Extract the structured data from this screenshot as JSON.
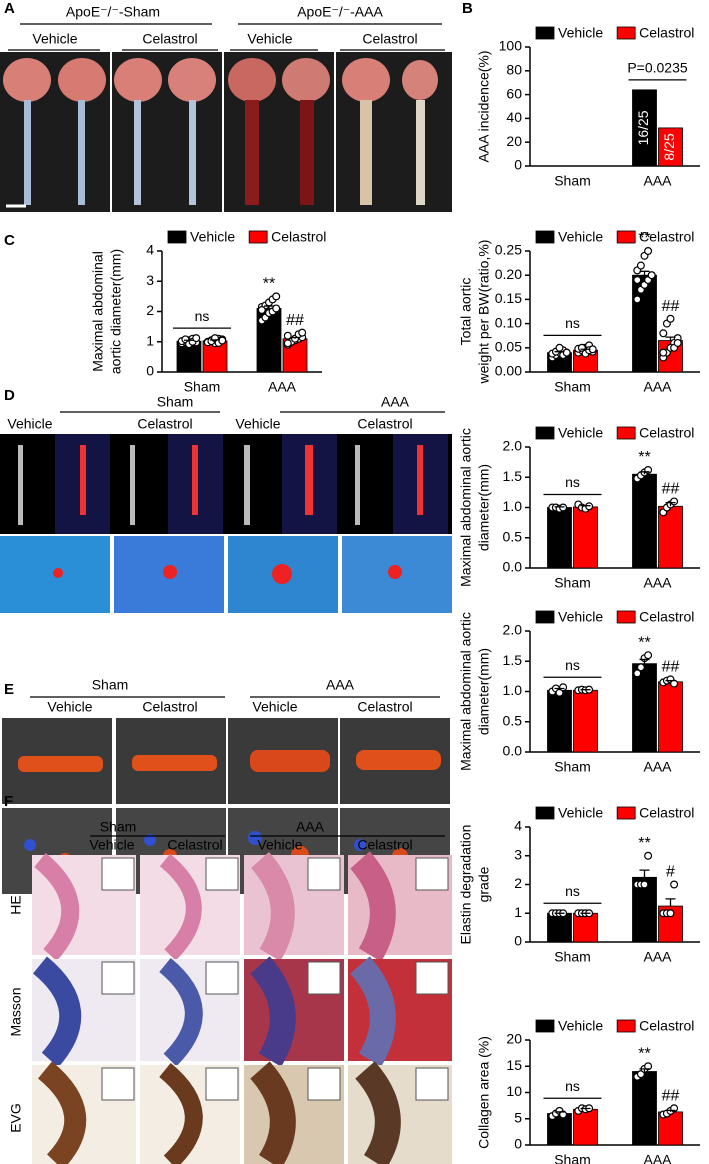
{
  "panels": {
    "A": {
      "letter": "A",
      "groups": [
        "ApoE⁻/⁻-Sham",
        "ApoE⁻/⁻-AAA"
      ],
      "conditions": [
        "Vehicle",
        "Celastrol",
        "Vehicle",
        "Celastrol"
      ]
    },
    "B": {
      "letter": "B"
    },
    "C": {
      "letter": "C"
    },
    "D": {
      "letter": "D",
      "groups": [
        "Sham",
        "AAA"
      ],
      "conditions": [
        "Vehicle",
        "Celastrol",
        "Vehicle",
        "Celastrol"
      ]
    },
    "E": {
      "letter": "E",
      "groups": [
        "Sham",
        "AAA"
      ],
      "conditions": [
        "Vehicle",
        "Celastrol",
        "Vehicle",
        "Celastrol"
      ]
    },
    "F": {
      "letter": "F",
      "groups": [
        "Sham",
        "AAA"
      ],
      "conditions": [
        "Vehicle",
        "Celastrol",
        "Vehicle",
        "Celastrol"
      ],
      "stains": [
        "HE",
        "Masson",
        "EVG"
      ]
    }
  },
  "chart_data": [
    {
      "type": "bar",
      "ylabel": [
        "AAA incidence(%)"
      ],
      "categories": [
        "Sham",
        "AAA"
      ],
      "series": [
        {
          "name": "Vehicle",
          "color": "#000000",
          "values": [
            0,
            64
          ],
          "value_labels": [
            null,
            "16/25"
          ]
        },
        {
          "name": "Celastrol",
          "color": "#ff0000",
          "values": [
            0,
            32
          ],
          "value_labels": [
            null,
            "8/25"
          ]
        }
      ],
      "category_annotations": [
        null,
        "P=0.0235"
      ],
      "ylim": [
        0,
        100
      ],
      "yticks": [
        0,
        20,
        40,
        60,
        80,
        100
      ],
      "legend": "top"
    },
    {
      "type": "bar",
      "ylabel": [
        "Maximal abdominal",
        "aortic diameter(mm)"
      ],
      "categories": [
        "Sham",
        "AAA"
      ],
      "series": [
        {
          "name": "Vehicle",
          "color": "#000000",
          "values": [
            1.02,
            2.1
          ],
          "errors": [
            0.03,
            0.08
          ],
          "points": [
            [
              0.95,
              1.0,
              1.05,
              1.1,
              0.98,
              1.02,
              1.08,
              0.92,
              1.0,
              1.12
            ],
            [
              1.7,
              1.8,
              1.95,
              2.0,
              2.1,
              2.15,
              2.2,
              2.3,
              2.4,
              2.5,
              2.05
            ]
          ],
          "annotations": [
            null,
            "**"
          ]
        },
        {
          "name": "Celastrol",
          "color": "#ff0000",
          "values": [
            1.03,
            1.1
          ],
          "errors": [
            0.03,
            0.04
          ],
          "points": [
            [
              1.0,
              1.05,
              0.95,
              1.1,
              1.08,
              0.98,
              1.02,
              1.12,
              0.96,
              1.04
            ],
            [
              0.9,
              1.0,
              1.05,
              1.1,
              1.15,
              1.2,
              1.0,
              1.1,
              1.25,
              1.3,
              0.95
            ]
          ],
          "annotations": [
            null,
            "##"
          ]
        }
      ],
      "category_annotations": [
        "ns",
        null
      ],
      "ylim": [
        0,
        4
      ],
      "yticks": [
        0,
        1,
        2,
        3,
        4
      ],
      "legend": "top"
    },
    {
      "type": "bar",
      "ylabel": [
        "Total aortic",
        "weight per BW(ratio,%)"
      ],
      "categories": [
        "Sham",
        "AAA"
      ],
      "series": [
        {
          "name": "Vehicle",
          "color": "#000000",
          "values": [
            0.04,
            0.2
          ],
          "errors": [
            0.002,
            0.008
          ],
          "points": [
            [
              0.03,
              0.035,
              0.04,
              0.045,
              0.04,
              0.038,
              0.042,
              0.05,
              0.035,
              0.04
            ],
            [
              0.15,
              0.17,
              0.18,
              0.19,
              0.2,
              0.21,
              0.22,
              0.24,
              0.25,
              0.2,
              0.19
            ]
          ],
          "annotations": [
            null,
            "**"
          ]
        },
        {
          "name": "Celastrol",
          "color": "#ff0000",
          "values": [
            0.045,
            0.065
          ],
          "errors": [
            0.002,
            0.007
          ],
          "points": [
            [
              0.04,
              0.045,
              0.05,
              0.055,
              0.042,
              0.048,
              0.05,
              0.038,
              0.045,
              0.047
            ],
            [
              0.03,
              0.04,
              0.05,
              0.06,
              0.07,
              0.08,
              0.1,
              0.11,
              0.05,
              0.06,
              0.04
            ]
          ],
          "annotations": [
            null,
            "##"
          ]
        }
      ],
      "category_annotations": [
        "ns",
        null
      ],
      "ylim": [
        0,
        0.25
      ],
      "yticks": [
        {
          "value": 0,
          "label": "0.00"
        },
        0.05,
        {
          "value": 0.1,
          "label": "0.10"
        },
        0.15,
        {
          "value": 0.2,
          "label": "0.20"
        },
        0.25
      ],
      "legend": "top"
    },
    {
      "type": "bar",
      "ylabel": [
        "Maximal abdominal aortic",
        "diameter(mm)"
      ],
      "categories": [
        "Sham",
        "AAA"
      ],
      "series": [
        {
          "name": "Vehicle",
          "color": "#000000",
          "values": [
            1.0,
            1.55
          ],
          "errors": [
            0.01,
            0.04
          ],
          "points": [
            [
              1.0,
              1.0,
              0.98,
              1.0
            ],
            [
              1.48,
              1.53,
              1.58,
              1.62
            ]
          ],
          "annotations": [
            null,
            "**"
          ]
        },
        {
          "name": "Celastrol",
          "color": "#ff0000",
          "values": [
            1.01,
            1.02
          ],
          "errors": [
            0.02,
            0.06
          ],
          "points": [
            [
              1.05,
              1.0,
              0.98,
              1.02
            ],
            [
              0.92,
              1.0,
              1.05,
              1.1
            ]
          ],
          "annotations": [
            null,
            "##"
          ]
        }
      ],
      "category_annotations": [
        "ns",
        null
      ],
      "ylim": [
        0,
        2
      ],
      "yticks": [
        {
          "value": 0,
          "label": "0.0"
        },
        0.5,
        {
          "value": 1,
          "label": "1.0"
        },
        1.5,
        {
          "value": 2,
          "label": "2.0"
        }
      ],
      "legend": "top"
    },
    {
      "type": "bar",
      "ylabel": [
        "Maximal abdominal aortic",
        "diameter(mm)"
      ],
      "categories": [
        "Sham",
        "AAA"
      ],
      "series": [
        {
          "name": "Vehicle",
          "color": "#000000",
          "values": [
            1.02,
            1.46
          ],
          "errors": [
            0.03,
            0.07
          ],
          "points": [
            [
              1.0,
              1.05,
              0.98,
              1.07
            ],
            [
              1.3,
              1.4,
              1.55,
              1.6
            ]
          ],
          "annotations": [
            null,
            "**"
          ]
        },
        {
          "name": "Celastrol",
          "color": "#ff0000",
          "values": [
            1.02,
            1.16
          ],
          "errors": [
            0.01,
            0.02
          ],
          "points": [
            [
              1.02,
              1.03,
              1.02,
              1.03
            ],
            [
              1.15,
              1.18,
              1.2,
              1.13
            ]
          ],
          "annotations": [
            null,
            "##"
          ]
        }
      ],
      "category_annotations": [
        "ns",
        null
      ],
      "ylim": [
        0,
        2
      ],
      "yticks": [
        {
          "value": 0,
          "label": "0.0"
        },
        0.5,
        {
          "value": 1,
          "label": "1.0"
        },
        1.5,
        {
          "value": 2,
          "label": "2.0"
        }
      ],
      "legend": "top"
    },
    {
      "type": "bar",
      "ylabel": [
        "Elastin degradation",
        "grade"
      ],
      "categories": [
        "Sham",
        "AAA"
      ],
      "series": [
        {
          "name": "Vehicle",
          "color": "#000000",
          "values": [
            1,
            2.25
          ],
          "errors": [
            0,
            0.25
          ],
          "points": [
            [
              1,
              1,
              1,
              1
            ],
            [
              2,
              2,
              2,
              3
            ]
          ],
          "annotations": [
            null,
            "**"
          ]
        },
        {
          "name": "Celastrol",
          "color": "#ff0000",
          "values": [
            1,
            1.25
          ],
          "errors": [
            0,
            0.25
          ],
          "points": [
            [
              1,
              1,
              1,
              1
            ],
            [
              1,
              1,
              1,
              2
            ]
          ],
          "annotations": [
            null,
            "#"
          ]
        }
      ],
      "category_annotations": [
        "ns",
        null
      ],
      "ylim": [
        0,
        4
      ],
      "yticks": [
        0,
        1,
        2,
        3,
        4
      ],
      "legend": "top"
    },
    {
      "type": "bar",
      "ylabel": [
        "Collagen area (%)"
      ],
      "categories": [
        "Sham",
        "AAA"
      ],
      "series": [
        {
          "name": "Vehicle",
          "color": "#000000",
          "values": [
            6,
            14
          ],
          "errors": [
            0.3,
            0.5
          ],
          "points": [
            [
              5.5,
              6,
              6.5,
              5.8
            ],
            [
              13,
              13.5,
              14.5,
              15
            ]
          ],
          "annotations": [
            null,
            "**"
          ]
        },
        {
          "name": "Celastrol",
          "color": "#ff0000",
          "values": [
            6.8,
            6.3
          ],
          "errors": [
            0.15,
            0.3
          ],
          "points": [
            [
              6.5,
              7,
              6.8,
              7
            ],
            [
              5.8,
              6,
              6.5,
              7
            ]
          ],
          "annotations": [
            null,
            "##"
          ]
        }
      ],
      "category_annotations": [
        "ns",
        null
      ],
      "ylim": [
        0,
        20
      ],
      "yticks": [
        0,
        5,
        10,
        15,
        20
      ],
      "legend": "top"
    }
  ]
}
